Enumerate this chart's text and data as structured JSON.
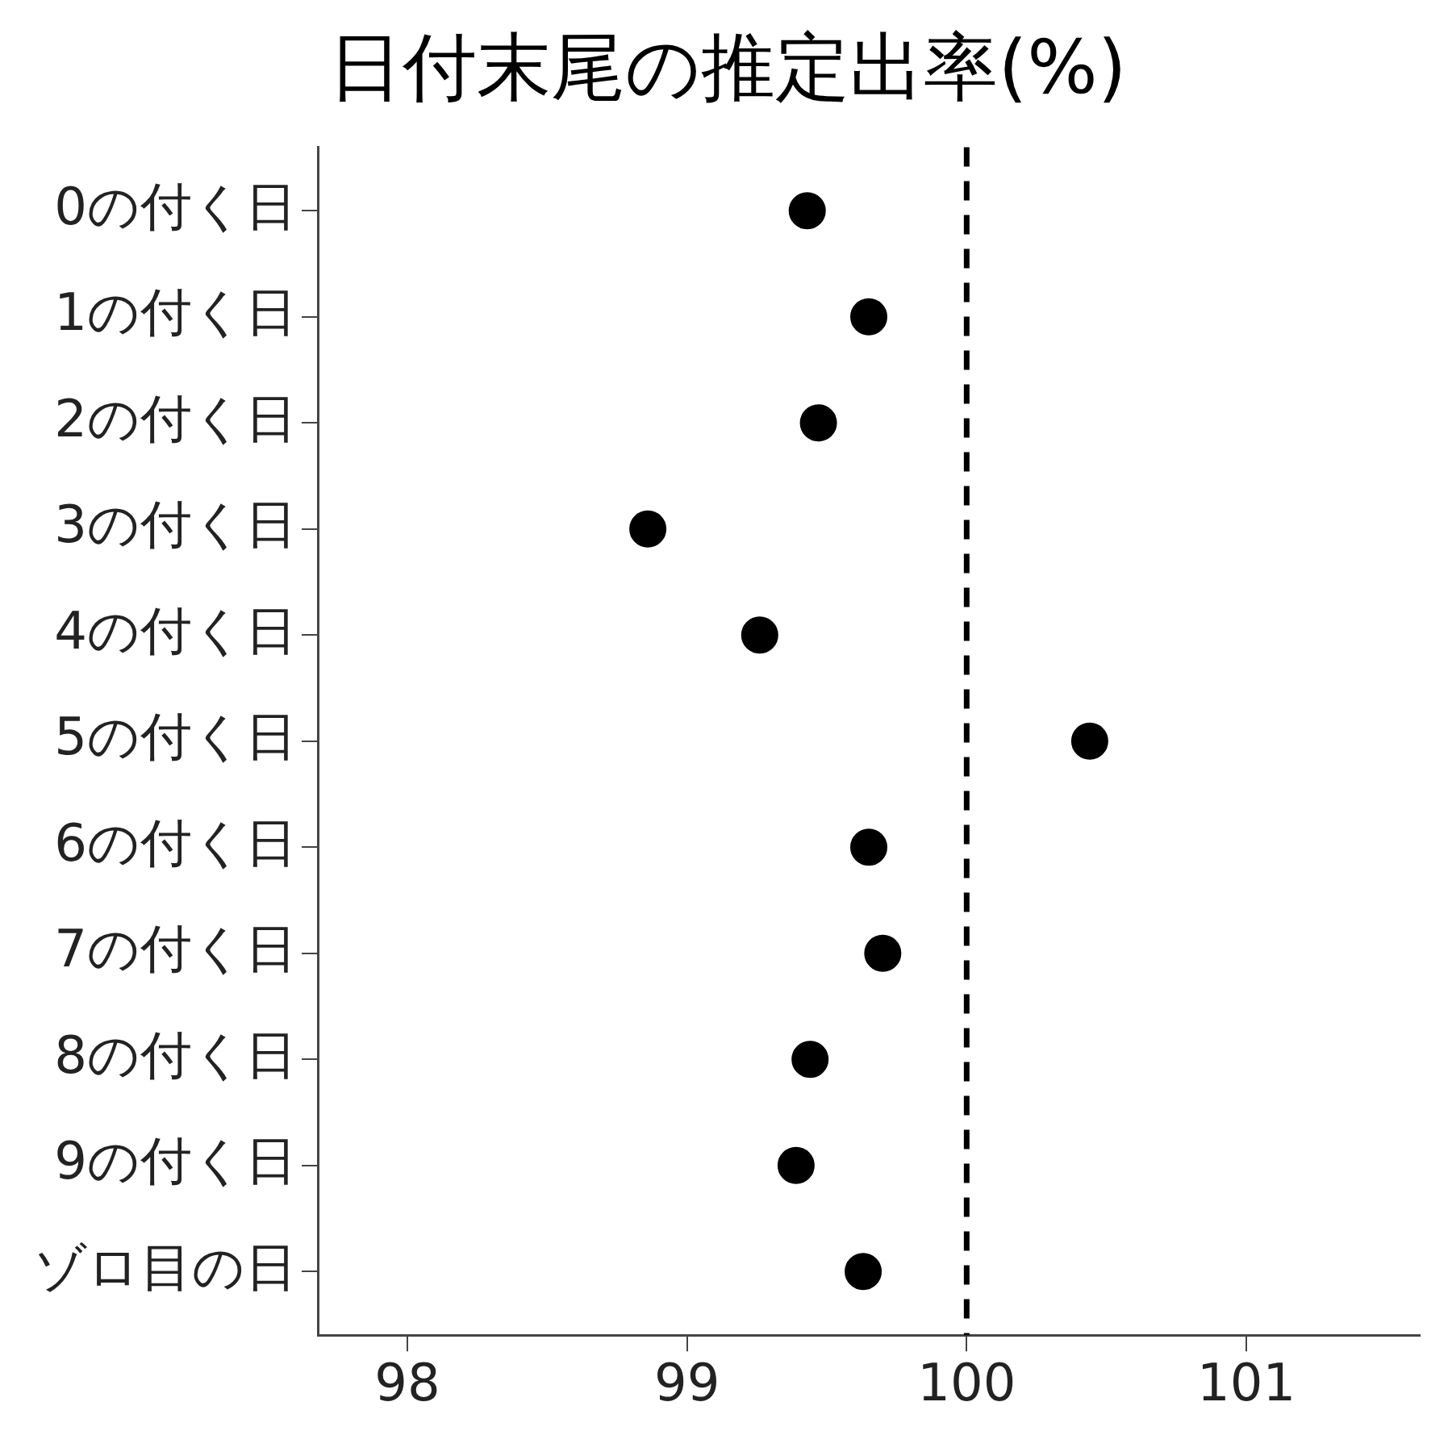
{
  "chart_data": {
    "type": "scatter",
    "title": "日付末尾の推定出率(%)",
    "orientation": "horizontal",
    "categories": [
      "0の付く日",
      "1の付く日",
      "2の付く日",
      "3の付く日",
      "4の付く日",
      "5の付く日",
      "6の付く日",
      "7の付く日",
      "8の付く日",
      "9の付く日",
      "ゾロ目の日"
    ],
    "values": [
      99.43,
      99.65,
      99.47,
      98.86,
      99.26,
      100.44,
      99.65,
      99.7,
      99.44,
      99.39,
      99.63
    ],
    "color": "#000000",
    "marker": "circle",
    "xlim": [
      97.68,
      101.62
    ],
    "xticks": [
      98,
      99,
      100,
      101
    ],
    "grid": false,
    "ref_lines": [
      {
        "axis": "x",
        "value": 100,
        "line_style": "dashed",
        "color": "#000000"
      }
    ]
  }
}
